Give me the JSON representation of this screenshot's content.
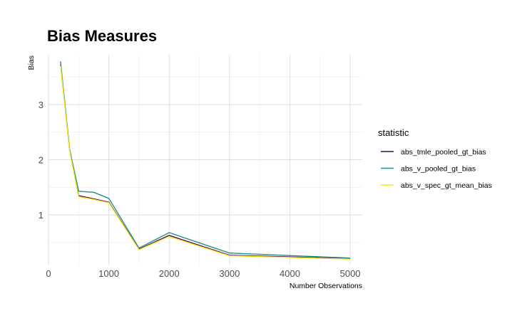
{
  "chart_data": {
    "type": "line",
    "title": "Bias Measures",
    "xlabel": "Number Observations",
    "ylabel": "Bias",
    "xlim": [
      0,
      5200
    ],
    "ylim": [
      0.1,
      3.9
    ],
    "xticks": [
      0,
      1000,
      2000,
      3000,
      4000,
      5000
    ],
    "yticks": [
      1,
      2,
      3
    ],
    "grid": true,
    "legend_title": "statistic",
    "legend_position": "right",
    "x": [
      200,
      350,
      500,
      750,
      1000,
      1500,
      2000,
      3000,
      5000
    ],
    "series": [
      {
        "name": "abs_tmle_pooled_gt_bias",
        "color": "#440154",
        "values": [
          3.72,
          2.17,
          1.35,
          1.29,
          1.23,
          0.38,
          0.63,
          0.27,
          0.21
        ]
      },
      {
        "name": "abs_v_pooled_gt_bias",
        "color": "#21908C",
        "values": [
          3.78,
          2.19,
          1.43,
          1.41,
          1.3,
          0.4,
          0.68,
          0.31,
          0.22
        ]
      },
      {
        "name": "abs_v_spec_gt_mean_bias",
        "color": "#FDE725",
        "values": [
          3.7,
          2.15,
          1.33,
          1.28,
          1.22,
          0.37,
          0.61,
          0.26,
          0.2
        ]
      }
    ]
  }
}
